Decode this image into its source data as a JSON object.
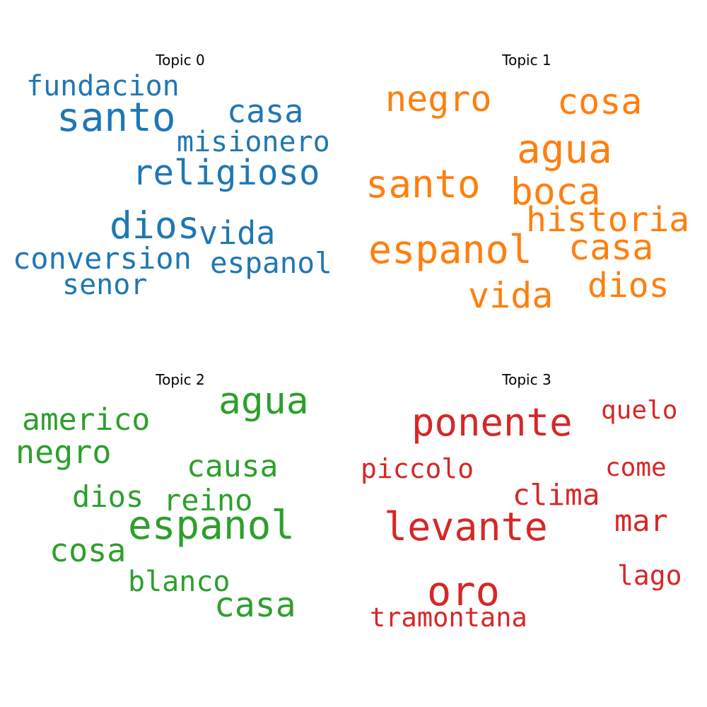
{
  "topics": [
    {
      "title": "Topic 0",
      "color": "#1f77b4",
      "words": [
        "fundacion",
        "santo",
        "casa",
        "misionero",
        "religioso",
        "dios",
        "vida",
        "conversion",
        "espanol",
        "senor"
      ]
    },
    {
      "title": "Topic 1",
      "color": "#ff7f0e",
      "words": [
        "negro",
        "cosa",
        "agua",
        "santo",
        "boca",
        "historia",
        "espanol",
        "casa",
        "vida",
        "dios"
      ]
    },
    {
      "title": "Topic 2",
      "color": "#2ca02c",
      "words": [
        "agua",
        "americo",
        "negro",
        "causa",
        "dios",
        "reino",
        "espanol",
        "cosa",
        "blanco",
        "casa"
      ]
    },
    {
      "title": "Topic 3",
      "color": "#d62728",
      "words": [
        "ponente",
        "quelo",
        "piccolo",
        "come",
        "clima",
        "levante",
        "mar",
        "oro",
        "lago",
        "tramontana"
      ]
    }
  ]
}
